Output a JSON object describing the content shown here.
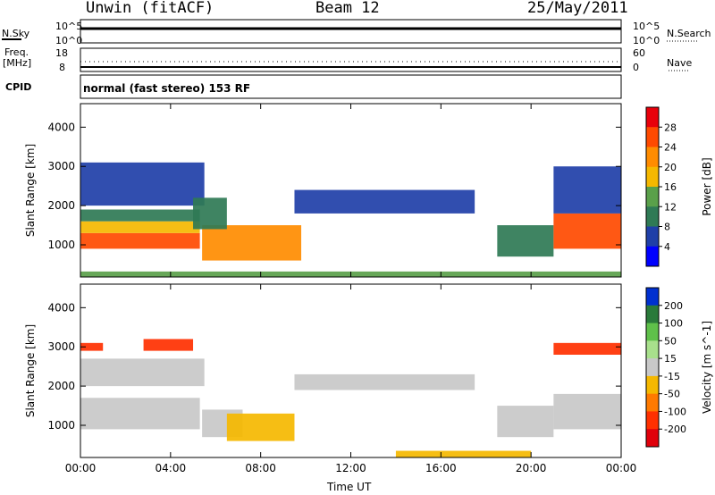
{
  "header": {
    "station": "Unwin (fitACF)",
    "beam": "Beam 12",
    "date": "25/May/2011"
  },
  "noise_panel": {
    "left_label": "N.Sky",
    "right_label": "N.Search",
    "scale_top": "10^5",
    "scale_bottom": "10^0"
  },
  "freq_panel": {
    "left_label": "Freq.",
    "left_unit": "[MHz]",
    "left_ticks": [
      "18",
      "8"
    ],
    "right_label": "Nave",
    "right_ticks": [
      "60",
      "0"
    ]
  },
  "cpid_panel": {
    "label": "CPID",
    "text": "normal (fast stereo) 153 RF"
  },
  "x_axis": {
    "label": "Time UT",
    "ticks": [
      "00:00",
      "04:00",
      "08:00",
      "12:00",
      "16:00",
      "20:00",
      "00:00"
    ]
  },
  "chart_data": [
    {
      "type": "heatmap",
      "name": "power",
      "ylabel": "Slant Range [km]",
      "yticks": [
        1000,
        2000,
        3000,
        4000
      ],
      "ylim": [
        180,
        4600
      ],
      "xlim_hours": [
        0,
        24
      ],
      "colorbar": {
        "label": "Power [dB]",
        "ticks": [
          "28",
          "24",
          "20",
          "16",
          "12",
          "8",
          "4"
        ],
        "colors": [
          "#e8000b",
          "#ff4a00",
          "#ff8c00",
          "#f5b800",
          "#5aa04a",
          "#2f7a55",
          "#1f3fa8",
          "#0000ff"
        ]
      },
      "regions": [
        {
          "t0": 0.0,
          "t1": 5.3,
          "r0": 900,
          "r1": 1300,
          "level": 26
        },
        {
          "t0": 0.0,
          "t1": 5.3,
          "r0": 1300,
          "r1": 1600,
          "level": 18
        },
        {
          "t0": 0.0,
          "t1": 5.3,
          "r0": 1600,
          "r1": 1900,
          "level": 10
        },
        {
          "t0": 0.0,
          "t1": 5.5,
          "r0": 2000,
          "r1": 3100,
          "level": 6
        },
        {
          "t0": 5.4,
          "t1": 9.8,
          "r0": 600,
          "r1": 1500,
          "level": 22
        },
        {
          "t0": 5.0,
          "t1": 6.5,
          "r0": 1400,
          "r1": 2200,
          "level": 10
        },
        {
          "t0": 9.5,
          "t1": 17.5,
          "r0": 1800,
          "r1": 2400,
          "level": 5
        },
        {
          "t0": 18.5,
          "t1": 21.0,
          "r0": 700,
          "r1": 1500,
          "level": 8
        },
        {
          "t0": 21.0,
          "t1": 24.0,
          "r0": 900,
          "r1": 1800,
          "level": 24
        },
        {
          "t0": 21.0,
          "t1": 24.0,
          "r0": 1800,
          "r1": 3000,
          "level": 6
        },
        {
          "t0": 0.0,
          "t1": 24.0,
          "r0": 180,
          "r1": 320,
          "level": 12
        }
      ]
    },
    {
      "type": "heatmap",
      "name": "velocity",
      "ylabel": "Slant Range [km]",
      "yticks": [
        1000,
        2000,
        3000,
        4000
      ],
      "ylim": [
        180,
        4600
      ],
      "xlim_hours": [
        0,
        24
      ],
      "colorbar": {
        "label": "Velocity [m s^-1]",
        "ticks": [
          "200",
          "100",
          "50",
          "15",
          "-15",
          "-50",
          "-100",
          "-200"
        ],
        "colors": [
          "#0030d0",
          "#2a7a3a",
          "#5fc04a",
          "#a8e08c",
          "#c8c8c8",
          "#f5b800",
          "#ff7a00",
          "#ff3000",
          "#e0000b"
        ]
      },
      "regions": [
        {
          "t0": 0.0,
          "t1": 5.3,
          "r0": 900,
          "r1": 1700,
          "level": 0
        },
        {
          "t0": 0.0,
          "t1": 5.5,
          "r0": 2000,
          "r1": 2700,
          "level": 0
        },
        {
          "t0": 0.0,
          "t1": 1.0,
          "r0": 2900,
          "r1": 3100,
          "level": -150
        },
        {
          "t0": 2.8,
          "t1": 5.0,
          "r0": 2900,
          "r1": 3200,
          "level": -150
        },
        {
          "t0": 5.4,
          "t1": 7.2,
          "r0": 700,
          "r1": 1400,
          "level": 0
        },
        {
          "t0": 6.5,
          "t1": 9.5,
          "r0": 600,
          "r1": 1300,
          "level": -30
        },
        {
          "t0": 9.5,
          "t1": 17.5,
          "r0": 1900,
          "r1": 2300,
          "level": 0
        },
        {
          "t0": 18.5,
          "t1": 21.0,
          "r0": 700,
          "r1": 1500,
          "level": 0
        },
        {
          "t0": 21.0,
          "t1": 24.0,
          "r0": 900,
          "r1": 1800,
          "level": 0
        },
        {
          "t0": 21.0,
          "t1": 24.0,
          "r0": 2800,
          "r1": 3100,
          "level": -150
        },
        {
          "t0": 14.0,
          "t1": 20.0,
          "r0": 180,
          "r1": 350,
          "level": -30
        }
      ]
    }
  ],
  "colors": {
    "axis": "#000000",
    "background": "#ffffff"
  }
}
